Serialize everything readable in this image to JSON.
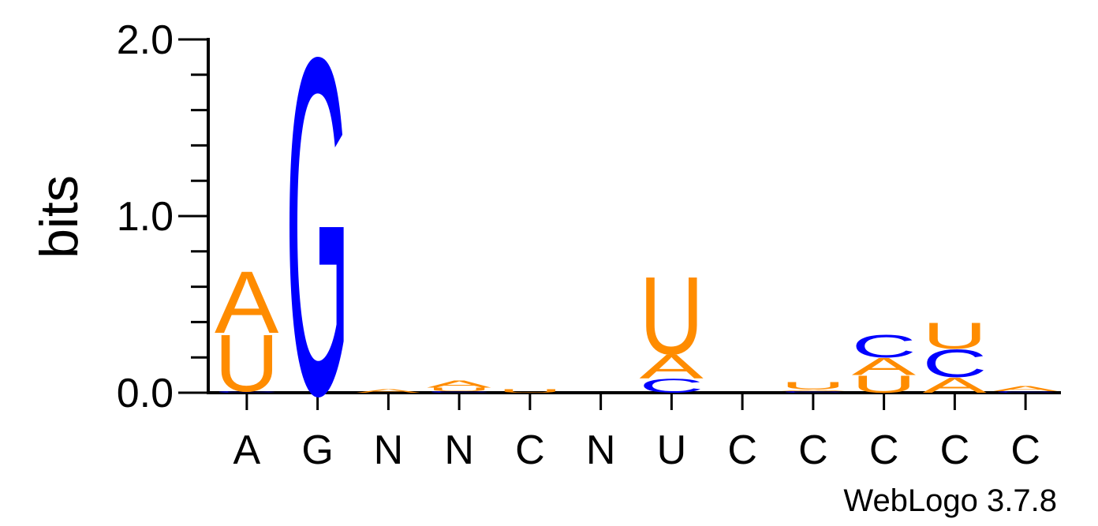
{
  "chart_data": {
    "type": "sequence_logo",
    "title": "",
    "ylabel": "bits",
    "ylim": [
      0,
      2.0
    ],
    "yticks": [
      {
        "value": 0.0,
        "label": "0.0"
      },
      {
        "value": 1.0,
        "label": "1.0"
      },
      {
        "value": 2.0,
        "label": "2.0"
      }
    ],
    "minor_tick_step": 0.2,
    "credit": "WebLogo 3.7.8",
    "colors": {
      "A": "#ff8c00",
      "U": "#ff8c00",
      "G": "#0000ff",
      "C": "#0000ff"
    },
    "positions": [
      {
        "label": "A",
        "stack": [
          {
            "letter": "C",
            "bits": 0.01
          },
          {
            "letter": "U",
            "bits": 0.33
          },
          {
            "letter": "A",
            "bits": 0.36
          }
        ]
      },
      {
        "label": "G",
        "stack": [
          {
            "letter": "G",
            "bits": 1.95
          }
        ]
      },
      {
        "label": "N",
        "stack": [
          {
            "letter": "A",
            "bits": 0.02
          }
        ]
      },
      {
        "label": "N",
        "stack": [
          {
            "letter": "C",
            "bits": 0.01
          },
          {
            "letter": "U",
            "bits": 0.02
          },
          {
            "letter": "A",
            "bits": 0.04
          }
        ]
      },
      {
        "label": "C",
        "stack": [
          {
            "letter": "U",
            "bits": 0.02
          }
        ]
      },
      {
        "label": "N",
        "stack": []
      },
      {
        "label": "U",
        "stack": [
          {
            "letter": "C",
            "bits": 0.08
          },
          {
            "letter": "A",
            "bits": 0.14
          },
          {
            "letter": "U",
            "bits": 0.45
          }
        ]
      },
      {
        "label": "C",
        "stack": []
      },
      {
        "label": "C",
        "stack": [
          {
            "letter": "C",
            "bits": 0.01
          },
          {
            "letter": "A",
            "bits": 0.01
          },
          {
            "letter": "U",
            "bits": 0.04
          }
        ]
      },
      {
        "label": "C",
        "stack": [
          {
            "letter": "U",
            "bits": 0.1
          },
          {
            "letter": "A",
            "bits": 0.1
          },
          {
            "letter": "C",
            "bits": 0.13
          }
        ]
      },
      {
        "label": "C",
        "stack": [
          {
            "letter": "A",
            "bits": 0.09
          },
          {
            "letter": "C",
            "bits": 0.16
          },
          {
            "letter": "U",
            "bits": 0.15
          }
        ]
      },
      {
        "label": "C",
        "stack": [
          {
            "letter": "C",
            "bits": 0.01
          },
          {
            "letter": "A",
            "bits": 0.03
          }
        ]
      }
    ]
  }
}
